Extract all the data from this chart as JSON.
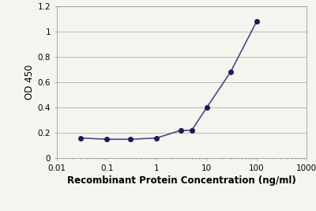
{
  "x": [
    0.03,
    0.1,
    0.3,
    1.0,
    3.0,
    5.0,
    10.0,
    30.0,
    100.0
  ],
  "y": [
    0.16,
    0.15,
    0.15,
    0.16,
    0.22,
    0.22,
    0.4,
    0.68,
    1.08
  ],
  "xlim": [
    0.01,
    1000
  ],
  "ylim": [
    0,
    1.2
  ],
  "yticks": [
    0,
    0.2,
    0.4,
    0.6,
    0.8,
    1.0,
    1.2
  ],
  "xtick_positions": [
    0.01,
    0.1,
    1,
    10,
    100,
    1000
  ],
  "xtick_labels": [
    "0.01",
    "0.1",
    "1",
    "10",
    "100",
    "1000"
  ],
  "xlabel": "Recombinant Protein Concentration (ng/ml)",
  "ylabel": "OD 450",
  "line_color": "#4a4a82",
  "marker_color": "#1a1a5a",
  "marker_size": 4,
  "line_width": 1.2,
  "bg_color": "#f5f5f0",
  "plot_bg_color": "#f5f5f0",
  "grid_color": "#bbbbbb",
  "xlabel_fontsize": 8.5,
  "ylabel_fontsize": 8.5,
  "tick_fontsize": 7.5
}
